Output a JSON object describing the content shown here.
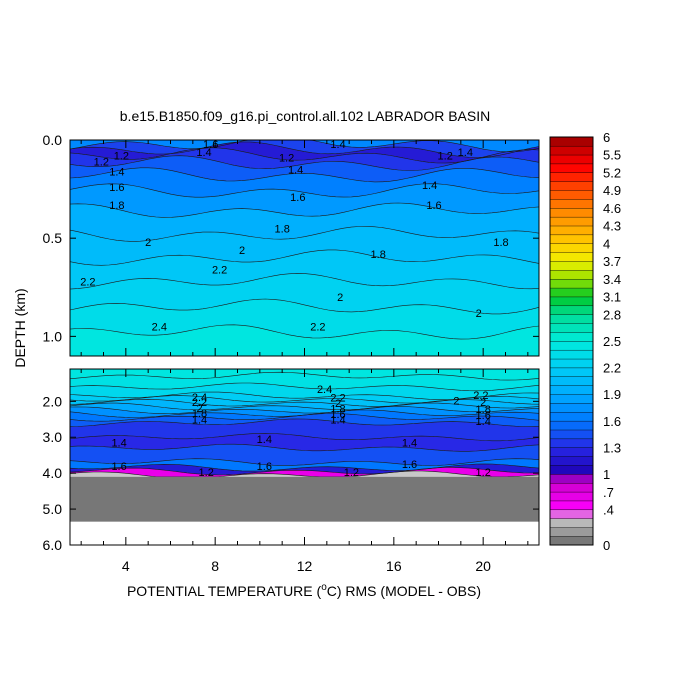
{
  "chart_data": {
    "type": "heatmap",
    "title": "b.e15.B1850.f09_g16.pi_control.all.102 LABRADOR BASIN",
    "xlabel": {
      "prefix": "POTENTIAL TEMPERATURE (",
      "sup": "o",
      "suffix": "C) RMS (MODEL - OBS)"
    },
    "ylabel": "DEPTH (km)",
    "x_ticks": [
      {
        "value": 4,
        "label": "4"
      },
      {
        "value": 8,
        "label": "8"
      },
      {
        "value": 12,
        "label": "12"
      },
      {
        "value": 16,
        "label": "16"
      },
      {
        "value": 20,
        "label": "20"
      }
    ],
    "x_range": [
      1.5,
      22.5
    ],
    "upper_panel": {
      "y_range": [
        0.0,
        1.1
      ],
      "y_ticks": [
        {
          "value": 0.0,
          "label": "0.0"
        },
        {
          "value": 0.5,
          "label": "0.5"
        },
        {
          "value": 1.0,
          "label": "1.0"
        }
      ],
      "band_depths": [
        0.0,
        0.02,
        0.05,
        0.08,
        0.12,
        0.18,
        0.26,
        0.36,
        0.48,
        0.6,
        0.72,
        0.85,
        0.98,
        1.1
      ],
      "band_values": [
        1.7,
        1.4,
        1.2,
        1.35,
        1.5,
        1.65,
        1.8,
        1.95,
        2.05,
        2.15,
        2.25,
        2.35,
        2.45
      ]
    },
    "lower_panel": {
      "y_range": [
        1.1,
        6.0
      ],
      "y_ticks": [
        {
          "value": 2.0,
          "label": "2.0"
        },
        {
          "value": 3.0,
          "label": "3.0"
        },
        {
          "value": 4.0,
          "label": "4.0"
        },
        {
          "value": 5.0,
          "label": "5.0"
        },
        {
          "value": 6.0,
          "label": "6.0"
        }
      ],
      "band_depths": [
        1.1,
        1.3,
        1.6,
        1.85,
        1.95,
        2.05,
        2.15,
        2.25,
        2.35,
        2.45,
        2.6,
        3.0,
        3.3,
        3.7,
        3.85,
        3.95,
        4.05,
        4.1
      ],
      "band_values": [
        2.45,
        2.4,
        2.3,
        2.2,
        2.1,
        2.0,
        1.9,
        1.75,
        1.6,
        1.5,
        1.35,
        1.3,
        1.45,
        1.6,
        1.2,
        0.6,
        0.3
      ],
      "land_from_depth": 4.1,
      "land_to_depth": 5.35,
      "land_color": "#777777"
    },
    "contour_labels": [
      {
        "x": 7.8,
        "depth": 0.02,
        "text": "1.6"
      },
      {
        "x": 13.5,
        "depth": 0.02,
        "text": "1.4"
      },
      {
        "x": 7.5,
        "depth": 0.06,
        "text": "1.4"
      },
      {
        "x": 19.2,
        "depth": 0.06,
        "text": "1.4"
      },
      {
        "x": 3.8,
        "depth": 0.08,
        "text": "1.2"
      },
      {
        "x": 11.2,
        "depth": 0.09,
        "text": "1.2"
      },
      {
        "x": 18.3,
        "depth": 0.08,
        "text": "1.2"
      },
      {
        "x": 2.9,
        "depth": 0.11,
        "text": "1.2"
      },
      {
        "x": 3.6,
        "depth": 0.16,
        "text": "1.4"
      },
      {
        "x": 11.6,
        "depth": 0.15,
        "text": "1.4"
      },
      {
        "x": 17.6,
        "depth": 0.23,
        "text": "1.4"
      },
      {
        "x": 3.6,
        "depth": 0.24,
        "text": "1.6"
      },
      {
        "x": 11.7,
        "depth": 0.29,
        "text": "1.6"
      },
      {
        "x": 17.8,
        "depth": 0.33,
        "text": "1.6"
      },
      {
        "x": 3.6,
        "depth": 0.33,
        "text": "1.8"
      },
      {
        "x": 11.0,
        "depth": 0.45,
        "text": "1.8"
      },
      {
        "x": 15.3,
        "depth": 0.58,
        "text": "1.8"
      },
      {
        "x": 20.8,
        "depth": 0.52,
        "text": "1.8"
      },
      {
        "x": 5.0,
        "depth": 0.52,
        "text": "2"
      },
      {
        "x": 9.2,
        "depth": 0.56,
        "text": "2"
      },
      {
        "x": 13.6,
        "depth": 0.8,
        "text": "2"
      },
      {
        "x": 19.8,
        "depth": 0.88,
        "text": "2"
      },
      {
        "x": 2.3,
        "depth": 0.72,
        "text": "2.2"
      },
      {
        "x": 8.2,
        "depth": 0.66,
        "text": "2.2"
      },
      {
        "x": 12.6,
        "depth": 0.95,
        "text": "2.2"
      },
      {
        "x": 5.5,
        "depth": 0.95,
        "text": "2.4"
      },
      {
        "x": 12.9,
        "depth": 1.65,
        "text": "2.4"
      },
      {
        "x": 7.3,
        "depth": 1.88,
        "text": "2.4"
      },
      {
        "x": 13.5,
        "depth": 1.9,
        "text": "2.2"
      },
      {
        "x": 19.9,
        "depth": 1.82,
        "text": "2.2"
      },
      {
        "x": 7.3,
        "depth": 2.02,
        "text": "2.2"
      },
      {
        "x": 13.5,
        "depth": 2.05,
        "text": "2"
      },
      {
        "x": 18.8,
        "depth": 1.98,
        "text": "2"
      },
      {
        "x": 20.0,
        "depth": 2.02,
        "text": "2"
      },
      {
        "x": 7.3,
        "depth": 2.18,
        "text": "2"
      },
      {
        "x": 13.5,
        "depth": 2.2,
        "text": "1.8"
      },
      {
        "x": 20.0,
        "depth": 2.22,
        "text": "1.8"
      },
      {
        "x": 7.3,
        "depth": 2.32,
        "text": "1.8"
      },
      {
        "x": 13.5,
        "depth": 2.35,
        "text": "1.6"
      },
      {
        "x": 20.0,
        "depth": 2.38,
        "text": "1.6"
      },
      {
        "x": 7.3,
        "depth": 2.5,
        "text": "1.4"
      },
      {
        "x": 13.5,
        "depth": 2.5,
        "text": "1.4"
      },
      {
        "x": 20.0,
        "depth": 2.55,
        "text": "1.4"
      },
      {
        "x": 3.7,
        "depth": 3.15,
        "text": "1.4"
      },
      {
        "x": 10.2,
        "depth": 3.05,
        "text": "1.4"
      },
      {
        "x": 16.7,
        "depth": 3.15,
        "text": "1.4"
      },
      {
        "x": 3.7,
        "depth": 3.8,
        "text": "1.6"
      },
      {
        "x": 10.2,
        "depth": 3.8,
        "text": "1.6"
      },
      {
        "x": 16.7,
        "depth": 3.75,
        "text": "1.6"
      },
      {
        "x": 7.6,
        "depth": 3.97,
        "text": "1.2"
      },
      {
        "x": 14.1,
        "depth": 3.97,
        "text": "1.2"
      },
      {
        "x": 20.0,
        "depth": 3.97,
        "text": "1.2"
      }
    ],
    "colorbar": {
      "levels": [
        0,
        0.1,
        0.2,
        0.3,
        0.4,
        0.55,
        0.7,
        0.85,
        1.0,
        1.1,
        1.2,
        1.3,
        1.4,
        1.5,
        1.6,
        1.7,
        1.8,
        1.9,
        2.0,
        2.1,
        2.2,
        2.3,
        2.4,
        2.5,
        2.6,
        2.7,
        2.8,
        2.95,
        3.1,
        3.25,
        3.4,
        3.55,
        3.7,
        3.85,
        4.0,
        4.15,
        4.3,
        4.45,
        4.6,
        4.75,
        4.9,
        5.05,
        5.2,
        5.35,
        5.5,
        5.75,
        6.0
      ],
      "tick_labels": [
        {
          "value": 0,
          "label": "0"
        },
        {
          "value": 0.4,
          "label": ".4"
        },
        {
          "value": 0.7,
          "label": ".7"
        },
        {
          "value": 1.0,
          "label": "1"
        },
        {
          "value": 1.3,
          "label": "1.3"
        },
        {
          "value": 1.6,
          "label": "1.6"
        },
        {
          "value": 1.9,
          "label": "1.9"
        },
        {
          "value": 2.2,
          "label": "2.2"
        },
        {
          "value": 2.5,
          "label": "2.5"
        },
        {
          "value": 2.8,
          "label": "2.8"
        },
        {
          "value": 3.1,
          "label": "3.1"
        },
        {
          "value": 3.4,
          "label": "3.4"
        },
        {
          "value": 3.7,
          "label": "3.7"
        },
        {
          "value": 4.0,
          "label": "4"
        },
        {
          "value": 4.3,
          "label": "4.3"
        },
        {
          "value": 4.6,
          "label": "4.6"
        },
        {
          "value": 4.9,
          "label": "4.9"
        },
        {
          "value": 5.2,
          "label": "5.2"
        },
        {
          "value": 5.5,
          "label": "5.5"
        },
        {
          "value": 6.0,
          "label": "6"
        }
      ]
    }
  }
}
